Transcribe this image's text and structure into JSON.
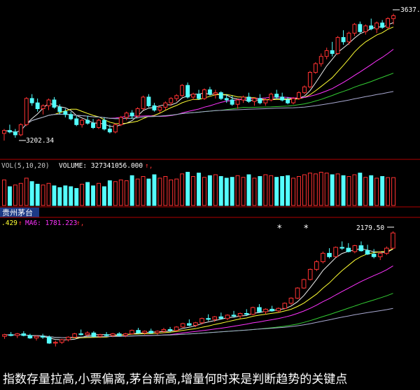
{
  "colors": {
    "background": "#000000",
    "up": "#ff3232",
    "down": "#54ffff",
    "panel_border": "#b00000",
    "ma_white": "#f0f0f0",
    "ma_yellow": "#ffff33",
    "ma_magenta": "#ff33ff",
    "ma_green": "#33cc33",
    "ma_gray": "#a8a8d0",
    "stock_title_bg": "#1c3a86"
  },
  "top_panel": {
    "high_marker": "3637.",
    "low_marker": "3202.34"
  },
  "volume_panel": {
    "label": "VOL(5,10,20)",
    "value_text": "VOLUME: 327341056.000",
    "arrow": "↑,"
  },
  "stock_panel": {
    "title": "贵州茅台",
    "legend_text": ".429",
    "ma6_text": "MA6: 1781.223",
    "arrow1": "↑",
    "arrow2": "↑,",
    "high_marker": "2179.50",
    "markers": [
      "*",
      "*"
    ]
  },
  "caption": "指数存量拉高,小票偏离,茅台新高,增量何时来是判断趋势的关键点",
  "chart_data": [
    {
      "type": "candlestick",
      "title": "",
      "ylim": [
        3150,
        3660
      ],
      "labels": {
        "high": "3637.",
        "low": "3202.34"
      },
      "ohlc": [
        [
          3225,
          3240,
          3200,
          3235
        ],
        [
          3235,
          3255,
          3225,
          3230
        ],
        [
          3230,
          3240,
          3210,
          3220
        ],
        [
          3220,
          3260,
          3215,
          3255
        ],
        [
          3255,
          3350,
          3250,
          3345
        ],
        [
          3345,
          3360,
          3320,
          3330
        ],
        [
          3330,
          3345,
          3300,
          3310
        ],
        [
          3310,
          3325,
          3290,
          3320
        ],
        [
          3320,
          3345,
          3305,
          3340
        ],
        [
          3340,
          3350,
          3310,
          3315
        ],
        [
          3315,
          3325,
          3290,
          3300
        ],
        [
          3300,
          3310,
          3280,
          3290
        ],
        [
          3290,
          3300,
          3270,
          3275
        ],
        [
          3275,
          3285,
          3250,
          3255
        ],
        [
          3255,
          3275,
          3245,
          3270
        ],
        [
          3270,
          3285,
          3255,
          3260
        ],
        [
          3260,
          3275,
          3240,
          3245
        ],
        [
          3245,
          3275,
          3240,
          3270
        ],
        [
          3270,
          3280,
          3235,
          3240
        ],
        [
          3240,
          3255,
          3225,
          3230
        ],
        [
          3230,
          3260,
          3225,
          3255
        ],
        [
          3255,
          3285,
          3250,
          3280
        ],
        [
          3280,
          3300,
          3270,
          3295
        ],
        [
          3295,
          3305,
          3275,
          3285
        ],
        [
          3285,
          3315,
          3280,
          3310
        ],
        [
          3310,
          3355,
          3305,
          3350
        ],
        [
          3350,
          3360,
          3315,
          3320
        ],
        [
          3320,
          3330,
          3300,
          3305
        ],
        [
          3305,
          3320,
          3295,
          3315
        ],
        [
          3315,
          3335,
          3305,
          3330
        ],
        [
          3330,
          3350,
          3320,
          3345
        ],
        [
          3345,
          3360,
          3335,
          3355
        ],
        [
          3355,
          3395,
          3350,
          3390
        ],
        [
          3390,
          3400,
          3345,
          3350
        ],
        [
          3350,
          3365,
          3340,
          3360
        ],
        [
          3360,
          3375,
          3340,
          3345
        ],
        [
          3345,
          3380,
          3340,
          3375
        ],
        [
          3375,
          3385,
          3355,
          3360
        ],
        [
          3360,
          3375,
          3345,
          3365
        ],
        [
          3365,
          3370,
          3340,
          3345
        ],
        [
          3345,
          3360,
          3330,
          3340
        ],
        [
          3340,
          3355,
          3320,
          3325
        ],
        [
          3325,
          3345,
          3310,
          3340
        ],
        [
          3340,
          3355,
          3330,
          3350
        ],
        [
          3350,
          3365,
          3330,
          3335
        ],
        [
          3335,
          3350,
          3320,
          3345
        ],
        [
          3345,
          3360,
          3325,
          3330
        ],
        [
          3330,
          3345,
          3320,
          3340
        ],
        [
          3340,
          3365,
          3335,
          3360
        ],
        [
          3360,
          3375,
          3345,
          3350
        ],
        [
          3350,
          3365,
          3335,
          3340
        ],
        [
          3340,
          3350,
          3325,
          3330
        ],
        [
          3330,
          3350,
          3325,
          3345
        ],
        [
          3345,
          3370,
          3340,
          3365
        ],
        [
          3365,
          3390,
          3360,
          3385
        ],
        [
          3385,
          3440,
          3380,
          3435
        ],
        [
          3435,
          3470,
          3430,
          3465
        ],
        [
          3465,
          3500,
          3455,
          3490
        ],
        [
          3490,
          3520,
          3480,
          3510
        ],
        [
          3510,
          3540,
          3490,
          3500
        ],
        [
          3500,
          3560,
          3495,
          3555
        ],
        [
          3555,
          3580,
          3530,
          3540
        ],
        [
          3540,
          3575,
          3530,
          3570
        ],
        [
          3570,
          3605,
          3560,
          3600
        ],
        [
          3600,
          3610,
          3570,
          3575
        ],
        [
          3575,
          3600,
          3565,
          3595
        ],
        [
          3595,
          3620,
          3580,
          3585
        ],
        [
          3585,
          3610,
          3570,
          3605
        ],
        [
          3605,
          3615,
          3585,
          3590
        ],
        [
          3590,
          3625,
          3585,
          3620
        ],
        [
          3620,
          3637,
          3600,
          3630
        ]
      ]
    },
    {
      "type": "bar",
      "title": "",
      "ylabel": "VOLUME",
      "values": [
        3.0,
        2.2,
        2.4,
        2.6,
        3.2,
        2.8,
        2.5,
        2.4,
        2.6,
        2.3,
        2.1,
        2.3,
        2.2,
        2.0,
        2.5,
        2.7,
        2.3,
        2.6,
        2.2,
        2.9,
        2.8,
        3.0,
        2.9,
        3.5,
        3.1,
        3.4,
        3.1,
        3.6,
        3.2,
        3.4,
        3.0,
        3.1,
        3.7,
        3.9,
        3.4,
        3.8,
        3.3,
        3.5,
        3.6,
        3.4,
        3.2,
        3.3,
        3.5,
        3.3,
        3.6,
        3.2,
        3.4,
        3.6,
        3.5,
        3.3,
        3.4,
        3.5,
        3.2,
        3.4,
        3.6,
        3.8,
        3.7,
        3.9,
        3.8,
        3.6,
        3.7,
        3.5,
        3.4,
        3.6,
        3.8,
        3.3,
        3.5,
        3.2,
        3.4,
        3.27,
        3.27
      ],
      "up": [
        1,
        0,
        1,
        1,
        1,
        0,
        0,
        1,
        1,
        0,
        0,
        0,
        0,
        0,
        1,
        0,
        0,
        1,
        0,
        0,
        1,
        1,
        1,
        0,
        1,
        1,
        0,
        0,
        1,
        1,
        1,
        1,
        1,
        0,
        1,
        0,
        1,
        0,
        1,
        0,
        0,
        0,
        1,
        1,
        0,
        1,
        0,
        1,
        1,
        0,
        0,
        0,
        1,
        1,
        1,
        1,
        1,
        1,
        1,
        0,
        1,
        0,
        1,
        1,
        0,
        1,
        0,
        1,
        0,
        1,
        1
      ]
    },
    {
      "type": "candlestick",
      "title": "贵州茅台",
      "ylim": [
        1400,
        2200
      ],
      "labels": {
        "high": "2179.50",
        "ma6": "MA6: 1781.223"
      },
      "ohlc": [
        [
          1560,
          1575,
          1545,
          1570
        ],
        [
          1570,
          1585,
          1560,
          1565
        ],
        [
          1565,
          1580,
          1550,
          1575
        ],
        [
          1575,
          1590,
          1560,
          1565
        ],
        [
          1565,
          1575,
          1545,
          1550
        ],
        [
          1550,
          1565,
          1535,
          1560
        ],
        [
          1560,
          1575,
          1545,
          1555
        ],
        [
          1555,
          1565,
          1515,
          1520
        ],
        [
          1520,
          1535,
          1500,
          1525
        ],
        [
          1525,
          1545,
          1515,
          1540
        ],
        [
          1540,
          1560,
          1530,
          1555
        ],
        [
          1555,
          1580,
          1550,
          1575
        ],
        [
          1575,
          1600,
          1565,
          1570
        ],
        [
          1570,
          1590,
          1560,
          1580
        ],
        [
          1580,
          1590,
          1555,
          1560
        ],
        [
          1560,
          1575,
          1550,
          1570
        ],
        [
          1570,
          1585,
          1560,
          1565
        ],
        [
          1565,
          1580,
          1555,
          1575
        ],
        [
          1575,
          1585,
          1560,
          1565
        ],
        [
          1565,
          1580,
          1555,
          1575
        ],
        [
          1575,
          1600,
          1570,
          1595
        ],
        [
          1595,
          1610,
          1575,
          1580
        ],
        [
          1580,
          1595,
          1570,
          1590
        ],
        [
          1590,
          1605,
          1575,
          1580
        ],
        [
          1580,
          1595,
          1570,
          1590
        ],
        [
          1590,
          1610,
          1580,
          1600
        ],
        [
          1600,
          1615,
          1585,
          1595
        ],
        [
          1595,
          1620,
          1590,
          1615
        ],
        [
          1615,
          1640,
          1610,
          1635
        ],
        [
          1635,
          1660,
          1620,
          1625
        ],
        [
          1625,
          1645,
          1615,
          1640
        ],
        [
          1640,
          1670,
          1630,
          1665
        ],
        [
          1665,
          1690,
          1650,
          1660
        ],
        [
          1660,
          1680,
          1645,
          1675
        ],
        [
          1675,
          1700,
          1660,
          1665
        ],
        [
          1665,
          1690,
          1655,
          1685
        ],
        [
          1685,
          1710,
          1670,
          1680
        ],
        [
          1680,
          1700,
          1665,
          1695
        ],
        [
          1695,
          1720,
          1680,
          1690
        ],
        [
          1690,
          1735,
          1685,
          1730
        ],
        [
          1730,
          1750,
          1700,
          1705
        ],
        [
          1705,
          1725,
          1690,
          1720
        ],
        [
          1720,
          1740,
          1705,
          1710
        ],
        [
          1710,
          1730,
          1700,
          1725
        ],
        [
          1725,
          1760,
          1720,
          1755
        ],
        [
          1755,
          1790,
          1745,
          1785
        ],
        [
          1785,
          1850,
          1780,
          1845
        ],
        [
          1845,
          1900,
          1840,
          1895
        ],
        [
          1895,
          1960,
          1890,
          1955
        ],
        [
          1955,
          2010,
          1945,
          2000
        ],
        [
          2000,
          2060,
          1990,
          2050
        ],
        [
          2050,
          2080,
          2020,
          2030
        ],
        [
          2030,
          2090,
          2025,
          2085
        ],
        [
          2085,
          2120,
          2070,
          2080
        ],
        [
          2080,
          2110,
          2055,
          2060
        ],
        [
          2060,
          2100,
          2050,
          2095
        ],
        [
          2095,
          2120,
          2060,
          2065
        ],
        [
          2065,
          2100,
          2040,
          2045
        ],
        [
          2045,
          2075,
          2020,
          2030
        ],
        [
          2030,
          2060,
          2010,
          2050
        ],
        [
          2050,
          2090,
          2040,
          2080
        ],
        [
          2080,
          2179.5,
          2075,
          2170
        ]
      ]
    }
  ]
}
